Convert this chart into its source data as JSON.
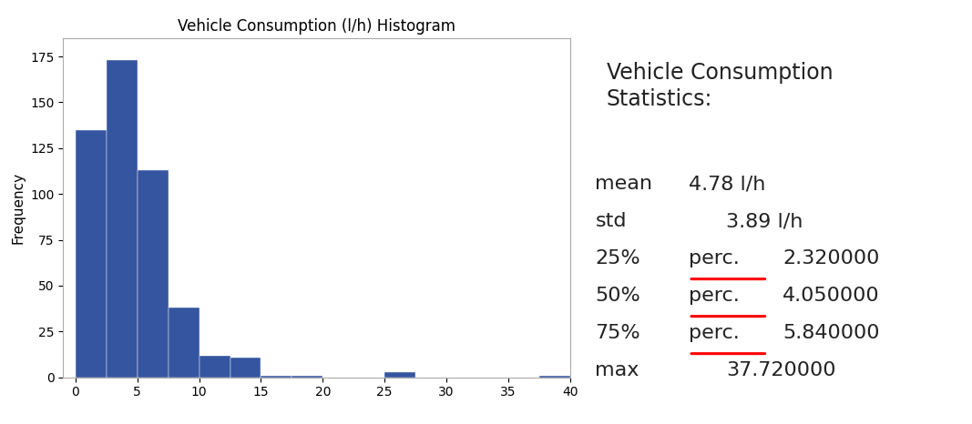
{
  "title": "Vehicle Consumption (l/h) Histogram",
  "ylabel": "Frequency",
  "bar_color": "#3555a0",
  "bar_edges": [
    0,
    2.5,
    5,
    7.5,
    10,
    12.5,
    15,
    17.5,
    20,
    22.5,
    25,
    27.5,
    30,
    32.5,
    35,
    37.5,
    40
  ],
  "bar_heights": [
    135,
    173,
    113,
    38,
    12,
    11,
    1,
    1,
    0,
    0,
    3,
    0,
    0,
    0,
    0,
    1
  ],
  "stats_title": "Vehicle Consumption\nStatistics:",
  "stats": [
    {
      "label": "mean",
      "value": "4.78 l/h",
      "underline_word": null
    },
    {
      "label": "std",
      "value": "3.89 l/h",
      "underline_word": null
    },
    {
      "label": "25%",
      "perc": "perc.",
      "value": "2.320000",
      "underline_word": "perc."
    },
    {
      "label": "50%",
      "perc": "perc.",
      "value": "4.050000",
      "underline_word": "perc."
    },
    {
      "label": "75%",
      "perc": "perc.",
      "value": "5.840000",
      "underline_word": "perc."
    },
    {
      "label": "max",
      "value": "37.720000",
      "underline_word": null
    }
  ],
  "xlim": [
    -1,
    40
  ],
  "ylim": [
    0,
    185
  ],
  "plot_bg": "#ffffff",
  "fig_bg": "#ffffff",
  "title_fontsize": 12,
  "stats_title_fontsize": 17,
  "stats_fontsize": 16
}
